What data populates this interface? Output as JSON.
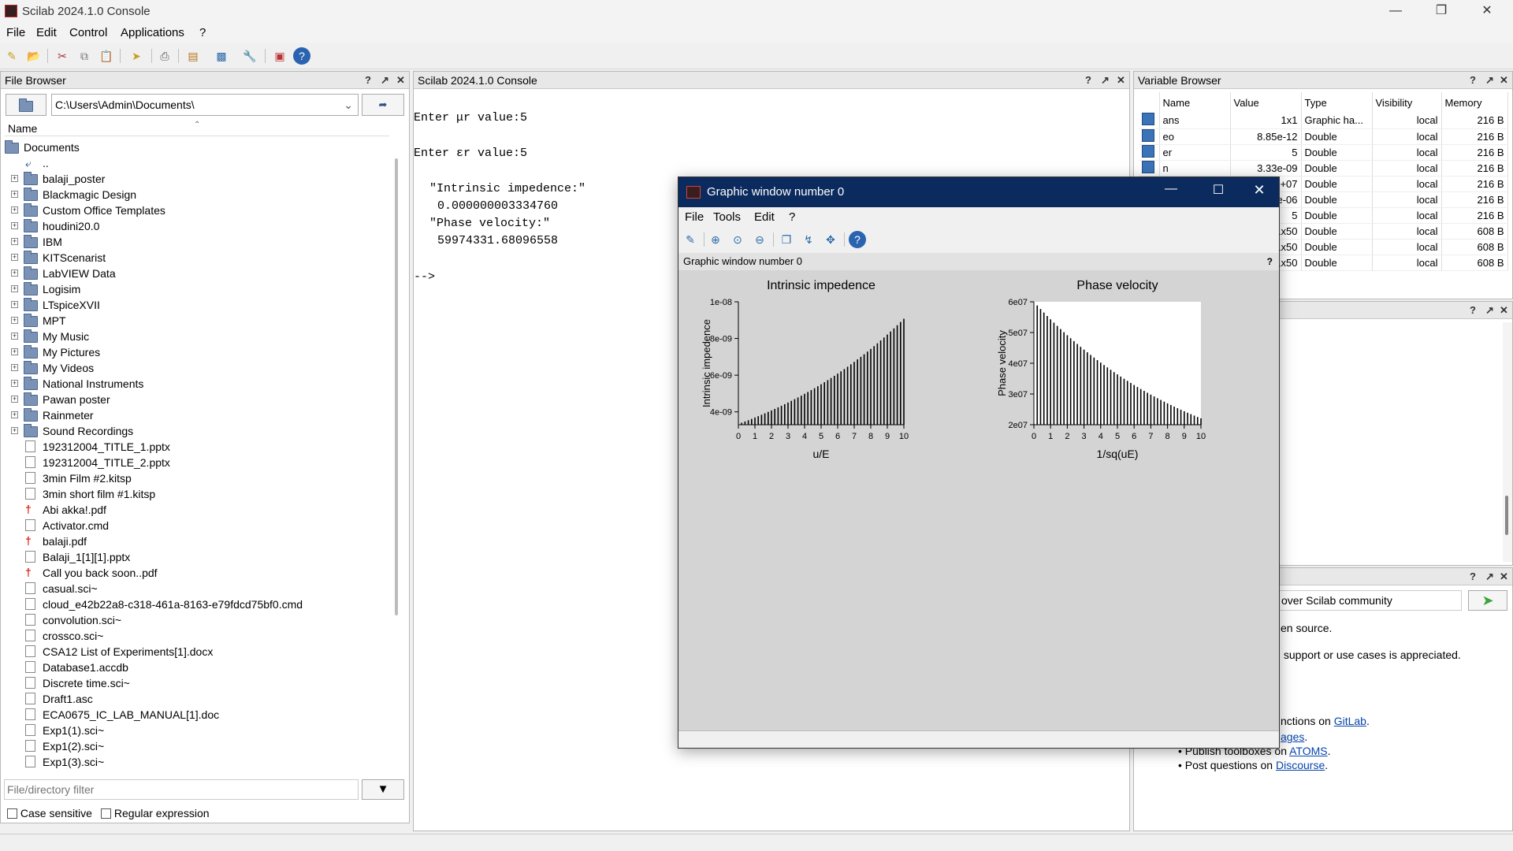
{
  "window": {
    "title": "Scilab 2024.1.0 Console"
  },
  "menu": [
    "File",
    "Edit",
    "Control",
    "Applications",
    "?"
  ],
  "file_browser": {
    "header": "File Browser",
    "path": "C:\\Users\\Admin\\Documents\\",
    "column_name": "Name",
    "root": "Documents",
    "parent": "..",
    "folders": [
      "balaji_poster",
      "Blackmagic Design",
      "Custom Office Templates",
      "houdini20.0",
      "IBM",
      "KITScenarist",
      "LabVIEW Data",
      "Logisim",
      "LTspiceXVII",
      "MPT",
      "My Music",
      "My Pictures",
      "My Videos",
      "National Instruments",
      "Pawan poster",
      "Rainmeter",
      "Sound Recordings"
    ],
    "files": [
      {
        "name": "192312004_TITLE_1.pptx",
        "icon": "file"
      },
      {
        "name": "192312004_TITLE_2.pptx",
        "icon": "file"
      },
      {
        "name": "3min Film #2.kitsp",
        "icon": "file"
      },
      {
        "name": "3min short film #1.kitsp",
        "icon": "file"
      },
      {
        "name": "Abi akka!.pdf",
        "icon": "pdf"
      },
      {
        "name": "Activator.cmd",
        "icon": "file"
      },
      {
        "name": "balaji.pdf",
        "icon": "pdf"
      },
      {
        "name": "Balaji_1[1][1].pptx",
        "icon": "file"
      },
      {
        "name": "Call you back soon..pdf",
        "icon": "pdf"
      },
      {
        "name": "casual.sci~",
        "icon": "file"
      },
      {
        "name": "cloud_e42b22a8-c318-461a-8163-e79fdcd75bf0.cmd",
        "icon": "file"
      },
      {
        "name": "convolution.sci~",
        "icon": "file"
      },
      {
        "name": "crossco.sci~",
        "icon": "file"
      },
      {
        "name": "CSA12 List of Experiments[1].docx",
        "icon": "file"
      },
      {
        "name": "Database1.accdb",
        "icon": "file"
      },
      {
        "name": "Discrete time.sci~",
        "icon": "file"
      },
      {
        "name": "Draft1.asc",
        "icon": "file"
      },
      {
        "name": "ECA0675_IC_LAB_MANUAL[1].doc",
        "icon": "file"
      },
      {
        "name": "Exp1(1).sci~",
        "icon": "file"
      },
      {
        "name": "Exp1(2).sci~",
        "icon": "file"
      },
      {
        "name": "Exp1(3).sci~",
        "icon": "file"
      }
    ],
    "filter_placeholder": "File/directory filter",
    "case_sensitive": "Case sensitive",
    "regular_expression": "Regular expression"
  },
  "console": {
    "header": "Scilab 2024.1.0 Console",
    "lines": [
      "Enter μr value:5",
      "Enter εr value:5",
      "\"Intrinsic impedence:\"",
      "0.000000003334760",
      "\"Phase velocity:\"",
      "59974331.68096558",
      "-->"
    ]
  },
  "variable_browser": {
    "header": "Variable Browser",
    "columns": [
      "Name",
      "Value",
      "Type",
      "Visibility",
      "Memory"
    ],
    "rows": [
      {
        "name": "ans",
        "value": "1x1",
        "type": "Graphic ha...",
        "vis": "local",
        "mem": "216 B"
      },
      {
        "name": "eo",
        "value": "8.85e-12",
        "type": "Double",
        "vis": "local",
        "mem": "216 B"
      },
      {
        "name": "er",
        "value": "5",
        "type": "Double",
        "vis": "local",
        "mem": "216 B"
      },
      {
        "name": "n",
        "value": "3.33e-09",
        "type": "Double",
        "vis": "local",
        "mem": "216 B"
      },
      {
        "name": "",
        "value": "+07",
        "type": "Double",
        "vis": "local",
        "mem": "216 B"
      },
      {
        "name": "",
        "value": "e-06",
        "type": "Double",
        "vis": "local",
        "mem": "216 B"
      },
      {
        "name": "",
        "value": "5",
        "type": "Double",
        "vis": "local",
        "mem": "216 B"
      },
      {
        "name": "",
        "value": "1x50",
        "type": "Double",
        "vis": "local",
        "mem": "608 B"
      },
      {
        "name": "",
        "value": "1x50",
        "type": "Double",
        "vis": "local",
        "mem": "608 B"
      },
      {
        "name": "",
        "value": "1x50",
        "type": "Double",
        "vis": "local",
        "mem": "608 B"
      }
    ]
  },
  "news": {
    "search_text": "over Scilab community",
    "line1": "en source.",
    "line2": " support or use cases is appreciated.",
    "line3_text": "nctions on ",
    "line3_link": "GitLab",
    "line4_link": "ages",
    "line5_text": "• Publish toolboxes on ",
    "line5_link": "ATOMS",
    "line6_text": "• Post questions on ",
    "line6_link": "Discourse"
  },
  "graphic_window": {
    "title": "Graphic window number 0",
    "menu": [
      "File",
      "Tools",
      "Edit",
      "?"
    ],
    "subheader": "Graphic window number 0"
  },
  "chart_data": [
    {
      "type": "bar",
      "title": "Intrinsic impedence",
      "xlabel": "u/E",
      "ylabel": "Intrinsic impedence",
      "xlim": [
        0,
        10
      ],
      "ylim": [
        3.3e-09,
        1e-08
      ],
      "xticks": [
        "0",
        "1",
        "2",
        "3",
        "4",
        "5",
        "6",
        "7",
        "8",
        "9",
        "10"
      ],
      "yticks": [
        "4e-09",
        "6e-09",
        "8e-09",
        "1e-08"
      ],
      "x": [
        0.2,
        0.4,
        0.6,
        0.8,
        1.0,
        1.2,
        1.4,
        1.6,
        1.8,
        2.0,
        2.2,
        2.4,
        2.6,
        2.8,
        3.0,
        3.2,
        3.4,
        3.6,
        3.8,
        4.0,
        4.2,
        4.4,
        4.6,
        4.8,
        5.0,
        5.2,
        5.4,
        5.6,
        5.8,
        6.0,
        6.2,
        6.4,
        6.6,
        6.8,
        7.0,
        7.2,
        7.4,
        7.6,
        7.8,
        8.0,
        8.2,
        8.4,
        8.6,
        8.8,
        9.0,
        9.2,
        9.4,
        9.6,
        9.8,
        10.0
      ],
      "values_formula": "3.34e-9 * exp(0.1 * x)"
    },
    {
      "type": "bar",
      "title": "Phase velocity",
      "xlabel": "1/sq(uE)",
      "ylabel": "Phase velocity",
      "xlim": [
        0,
        10
      ],
      "ylim": [
        20000000.0,
        60000000.0
      ],
      "xticks": [
        "0",
        "1",
        "2",
        "3",
        "4",
        "5",
        "6",
        "7",
        "8",
        "9",
        "10"
      ],
      "yticks": [
        "2e07",
        "3e07",
        "4e07",
        "5e07",
        "6e07"
      ],
      "x": [
        0.2,
        0.4,
        0.6,
        0.8,
        1.0,
        1.2,
        1.4,
        1.6,
        1.8,
        2.0,
        2.2,
        2.4,
        2.6,
        2.8,
        3.0,
        3.2,
        3.4,
        3.6,
        3.8,
        4.0,
        4.2,
        4.4,
        4.6,
        4.8,
        5.0,
        5.2,
        5.4,
        5.6,
        5.8,
        6.0,
        6.2,
        6.4,
        6.6,
        6.8,
        7.0,
        7.2,
        7.4,
        7.6,
        7.8,
        8.0,
        8.2,
        8.4,
        8.6,
        8.8,
        9.0,
        9.2,
        9.4,
        9.6,
        9.8,
        10.0
      ],
      "values_formula": "6.0e7 * exp(-0.1 * x)"
    }
  ]
}
